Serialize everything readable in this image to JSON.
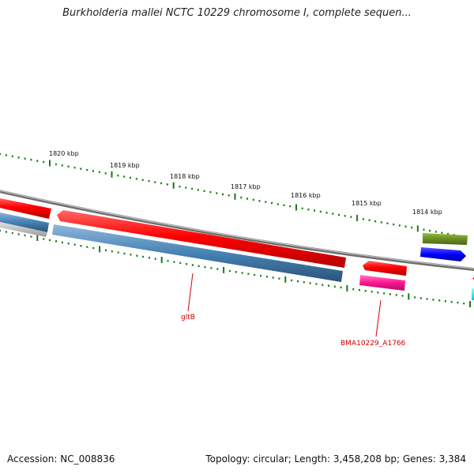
{
  "header": {
    "title": "Burkholderia mallei NCTC 10229 chromosome I, complete sequen..."
  },
  "footer": {
    "accession": "Accession: NC_008836",
    "summary": "Topology: circular; Length: 3,458,208 bp; Genes: 3,384"
  },
  "map": {
    "kbp_labels": [
      "1820 kbp",
      "1819 kbp",
      "1818 kbp",
      "1817 kbp",
      "1816 kbp",
      "1815 kbp",
      "1814 kbp"
    ],
    "gene_labels": {
      "gltB": "gltB",
      "bma": "BMA10229_A1766"
    },
    "colors": {
      "tick": "#1a7a1a",
      "backbone": "#808080",
      "cds_red": "#ff0000",
      "cds_steelblue": "#4682b4",
      "cds_pink": "#ff1493",
      "cds_olive": "#6b8e23",
      "cds_blue": "#0000ff",
      "cds_cyan": "#00e5ff",
      "label": "#cc0000"
    }
  }
}
